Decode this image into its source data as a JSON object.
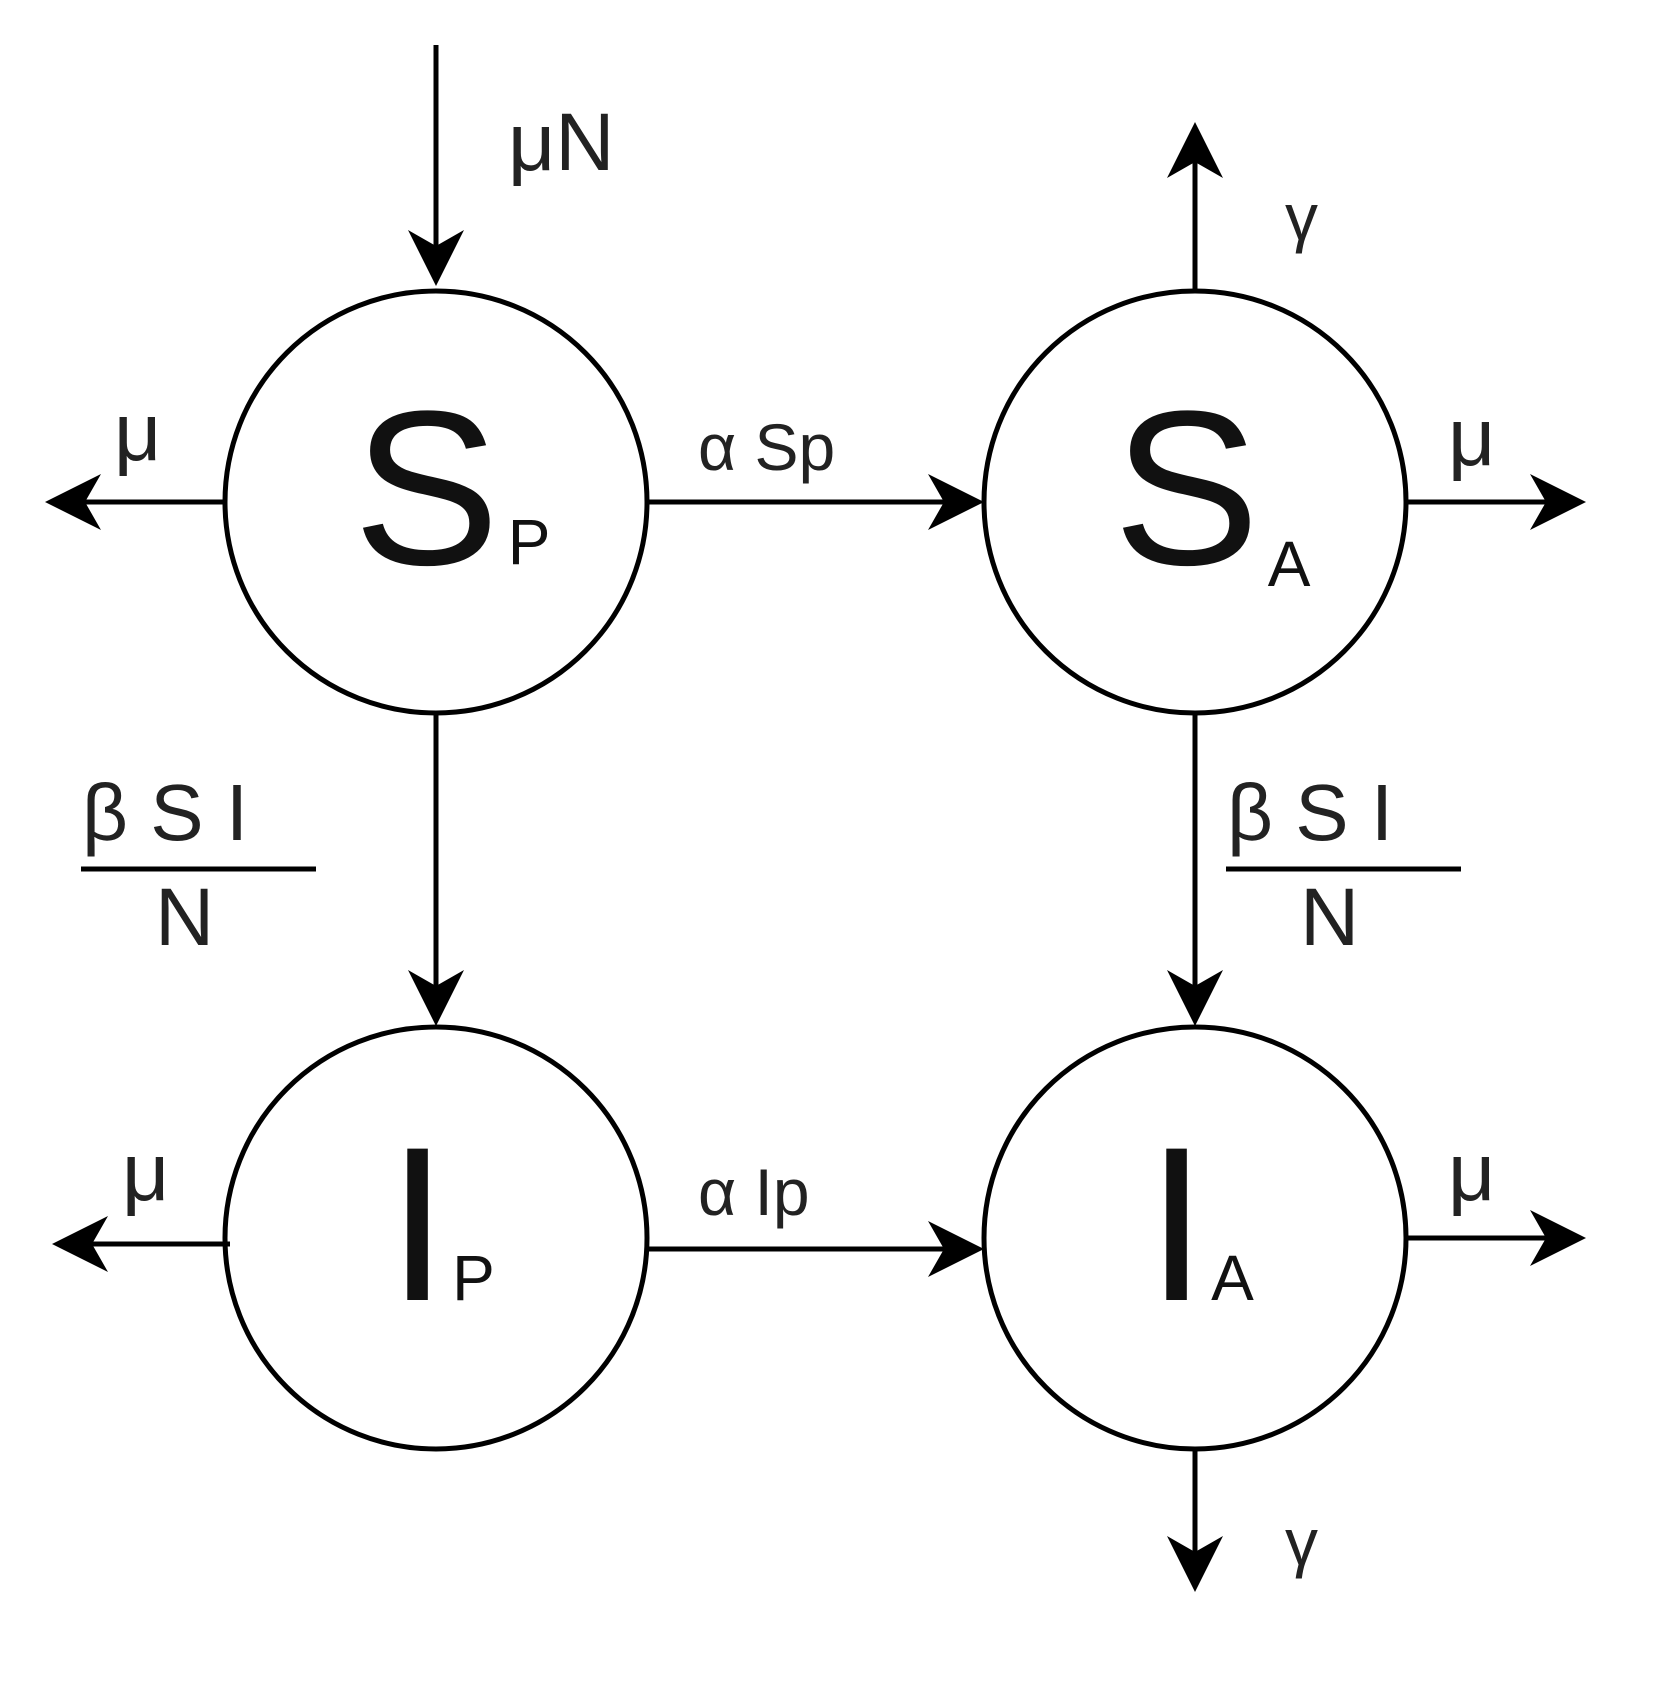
{
  "colors": {
    "stroke": "#000000",
    "text": "#222222",
    "background": "#ffffff"
  },
  "nodes": {
    "sp": {
      "symbol": "S",
      "subscript": "P"
    },
    "sa": {
      "symbol": "S",
      "subscript": "A"
    },
    "ip": {
      "symbol": "I",
      "subscript": "P"
    },
    "ia": {
      "symbol": "I",
      "subscript": "A"
    }
  },
  "labels": {
    "birth": "μN",
    "death_sp": "μ",
    "death_sa": "μ",
    "death_ip": "μ",
    "death_ia": "μ",
    "gamma_sa": "γ",
    "gamma_ia": "γ",
    "alpha_sp": "α Sp",
    "alpha_ip": "α Ip",
    "infection_left_numerator": "β S I",
    "infection_left_denominator": "N",
    "infection_right_numerator": "β S I",
    "infection_right_denominator": "N"
  }
}
